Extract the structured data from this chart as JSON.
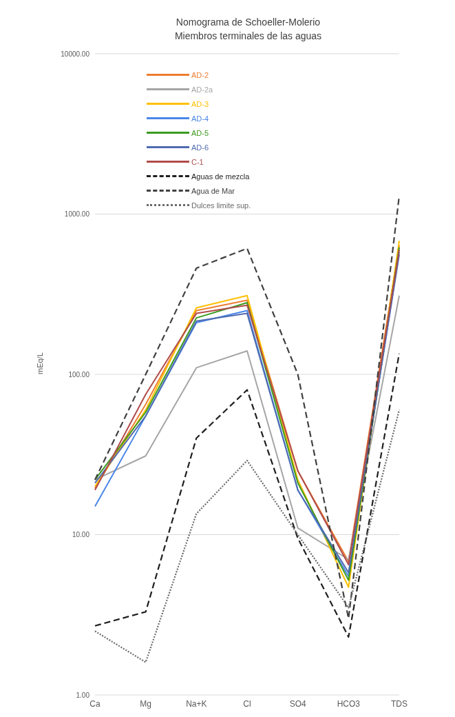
{
  "chart_data": {
    "type": "line",
    "title": "Nomograma de Schoeller-Molerio",
    "subtitle": "Miembros terminales de las aguas",
    "ylabel": "mEq/L",
    "categories": [
      "Ca",
      "Mg",
      "Na+K",
      "Cl",
      "SO4",
      "HCO3",
      "TDS"
    ],
    "series": [
      {
        "name": "AD-2",
        "color": "#ed7d31",
        "line_style": "solid",
        "values": [
          19.5,
          65,
          250,
          290,
          25,
          6.8,
          640
        ]
      },
      {
        "name": "AD-2a",
        "color": "#a5a5a5",
        "line_style": "solid",
        "values": [
          22,
          31,
          110,
          140,
          11,
          7,
          310
        ]
      },
      {
        "name": "AD-3",
        "color": "#ffc000",
        "line_style": "solid",
        "values": [
          20,
          60,
          260,
          310,
          22,
          4.7,
          680
        ]
      },
      {
        "name": "AD-4",
        "color": "#4a86e8",
        "line_style": "solid",
        "values": [
          15,
          55,
          210,
          250,
          19,
          5.5,
          580
        ]
      },
      {
        "name": "AD-5",
        "color": "#3a9a1f",
        "line_style": "solid",
        "values": [
          22,
          58,
          225,
          280,
          21,
          5.2,
          620
        ]
      },
      {
        "name": "AD-6",
        "color": "#4f6bb0",
        "line_style": "solid",
        "values": [
          21,
          55,
          215,
          240,
          19,
          5.8,
          560
        ]
      },
      {
        "name": "C-1",
        "color": "#b04b4b",
        "line_style": "solid",
        "values": [
          19,
          75,
          240,
          270,
          25,
          6.5,
          600
        ]
      },
      {
        "name": "Aguas de mezcla",
        "color": "#1f1f1f",
        "line_style": "dashed",
        "values": [
          2.7,
          3.3,
          40,
          80,
          9.5,
          2.3,
          135
        ]
      },
      {
        "name": "Agua de Mar",
        "color": "#404040",
        "line_style": "dashed",
        "values": [
          22,
          100,
          460,
          610,
          100,
          3,
          1300
        ]
      },
      {
        "name": "Dulces limite sup.",
        "color": "#6a6a6a",
        "line_style": "dotted",
        "values": [
          2.5,
          1.6,
          13.5,
          29,
          10,
          3.5,
          60
        ]
      }
    ],
    "log": "y",
    "ylim": [
      1,
      10000
    ],
    "yticks": [
      {
        "value": 1,
        "label": "1.00"
      },
      {
        "value": 10,
        "label": "10.00"
      },
      {
        "value": 100,
        "label": "100.00"
      },
      {
        "value": 1000,
        "label": "1000.00"
      },
      {
        "value": 10000,
        "label": "10000.00"
      }
    ],
    "grid": "y",
    "legend": "top left",
    "marker": "none"
  }
}
